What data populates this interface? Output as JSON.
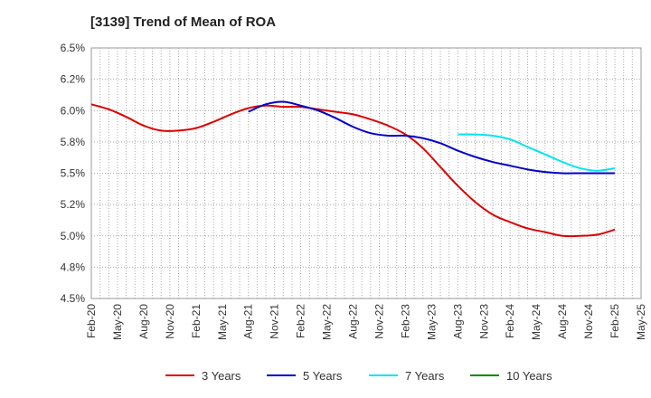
{
  "chart_data": {
    "type": "line",
    "title": "[3139]  Trend of Mean of ROA",
    "xlabel": "",
    "ylabel": "",
    "ylim": [
      4.5,
      6.5
    ],
    "y_ticks": [
      4.5,
      4.75,
      5.0,
      5.25,
      5.5,
      5.75,
      6.0,
      6.25,
      6.5
    ],
    "y_tick_labels": [
      "4.5%",
      "4.8%",
      "5.0%",
      "5.2%",
      "5.5%",
      "5.8%",
      "6.0%",
      "6.2%",
      "6.5%"
    ],
    "x_range_months": [
      0,
      63
    ],
    "x_ticks": [
      0,
      3,
      6,
      9,
      12,
      15,
      18,
      21,
      24,
      27,
      30,
      33,
      36,
      39,
      42,
      45,
      48,
      51,
      54,
      57,
      60,
      63
    ],
    "x_tick_labels": [
      "Feb-20",
      "May-20",
      "Aug-20",
      "Nov-20",
      "Feb-21",
      "May-21",
      "Aug-21",
      "Nov-21",
      "Feb-22",
      "May-22",
      "Aug-22",
      "Nov-22",
      "Feb-23",
      "May-23",
      "Aug-23",
      "Nov-23",
      "Feb-24",
      "May-24",
      "Aug-24",
      "Nov-24",
      "Feb-25",
      "May-25"
    ],
    "grid": true,
    "legend_position": "bottom",
    "series": [
      {
        "name": "3 Years",
        "color": "#dd0000",
        "x": [
          0,
          2,
          4,
          6,
          8,
          10,
          12,
          14,
          16,
          18,
          20,
          22,
          24,
          26,
          28,
          30,
          32,
          34,
          36,
          38,
          40,
          42,
          44,
          46,
          48,
          50,
          52,
          54,
          56,
          58,
          60
        ],
        "values": [
          6.05,
          6.01,
          5.95,
          5.88,
          5.84,
          5.84,
          5.86,
          5.91,
          5.97,
          6.02,
          6.04,
          6.03,
          6.03,
          6.01,
          5.99,
          5.97,
          5.93,
          5.88,
          5.81,
          5.7,
          5.55,
          5.4,
          5.27,
          5.17,
          5.11,
          5.06,
          5.03,
          5.0,
          5.0,
          5.01,
          5.05
        ]
      },
      {
        "name": "5 Years",
        "color": "#0000cc",
        "x": [
          18,
          20,
          22,
          24,
          26,
          28,
          30,
          32,
          34,
          36,
          38,
          40,
          42,
          44,
          46,
          48,
          50,
          52,
          54,
          56,
          58,
          60
        ],
        "values": [
          5.99,
          6.05,
          6.07,
          6.04,
          6.0,
          5.94,
          5.87,
          5.82,
          5.8,
          5.8,
          5.78,
          5.74,
          5.68,
          5.63,
          5.59,
          5.56,
          5.53,
          5.51,
          5.5,
          5.5,
          5.5,
          5.5
        ]
      },
      {
        "name": "7 Years",
        "color": "#00e5ee",
        "x": [
          42,
          44,
          46,
          48,
          50,
          52,
          54,
          56,
          58,
          60
        ],
        "values": [
          5.81,
          5.81,
          5.8,
          5.77,
          5.71,
          5.65,
          5.59,
          5.54,
          5.52,
          5.54
        ]
      },
      {
        "name": "10 Years",
        "color": "#008800",
        "x": [],
        "values": []
      }
    ]
  }
}
